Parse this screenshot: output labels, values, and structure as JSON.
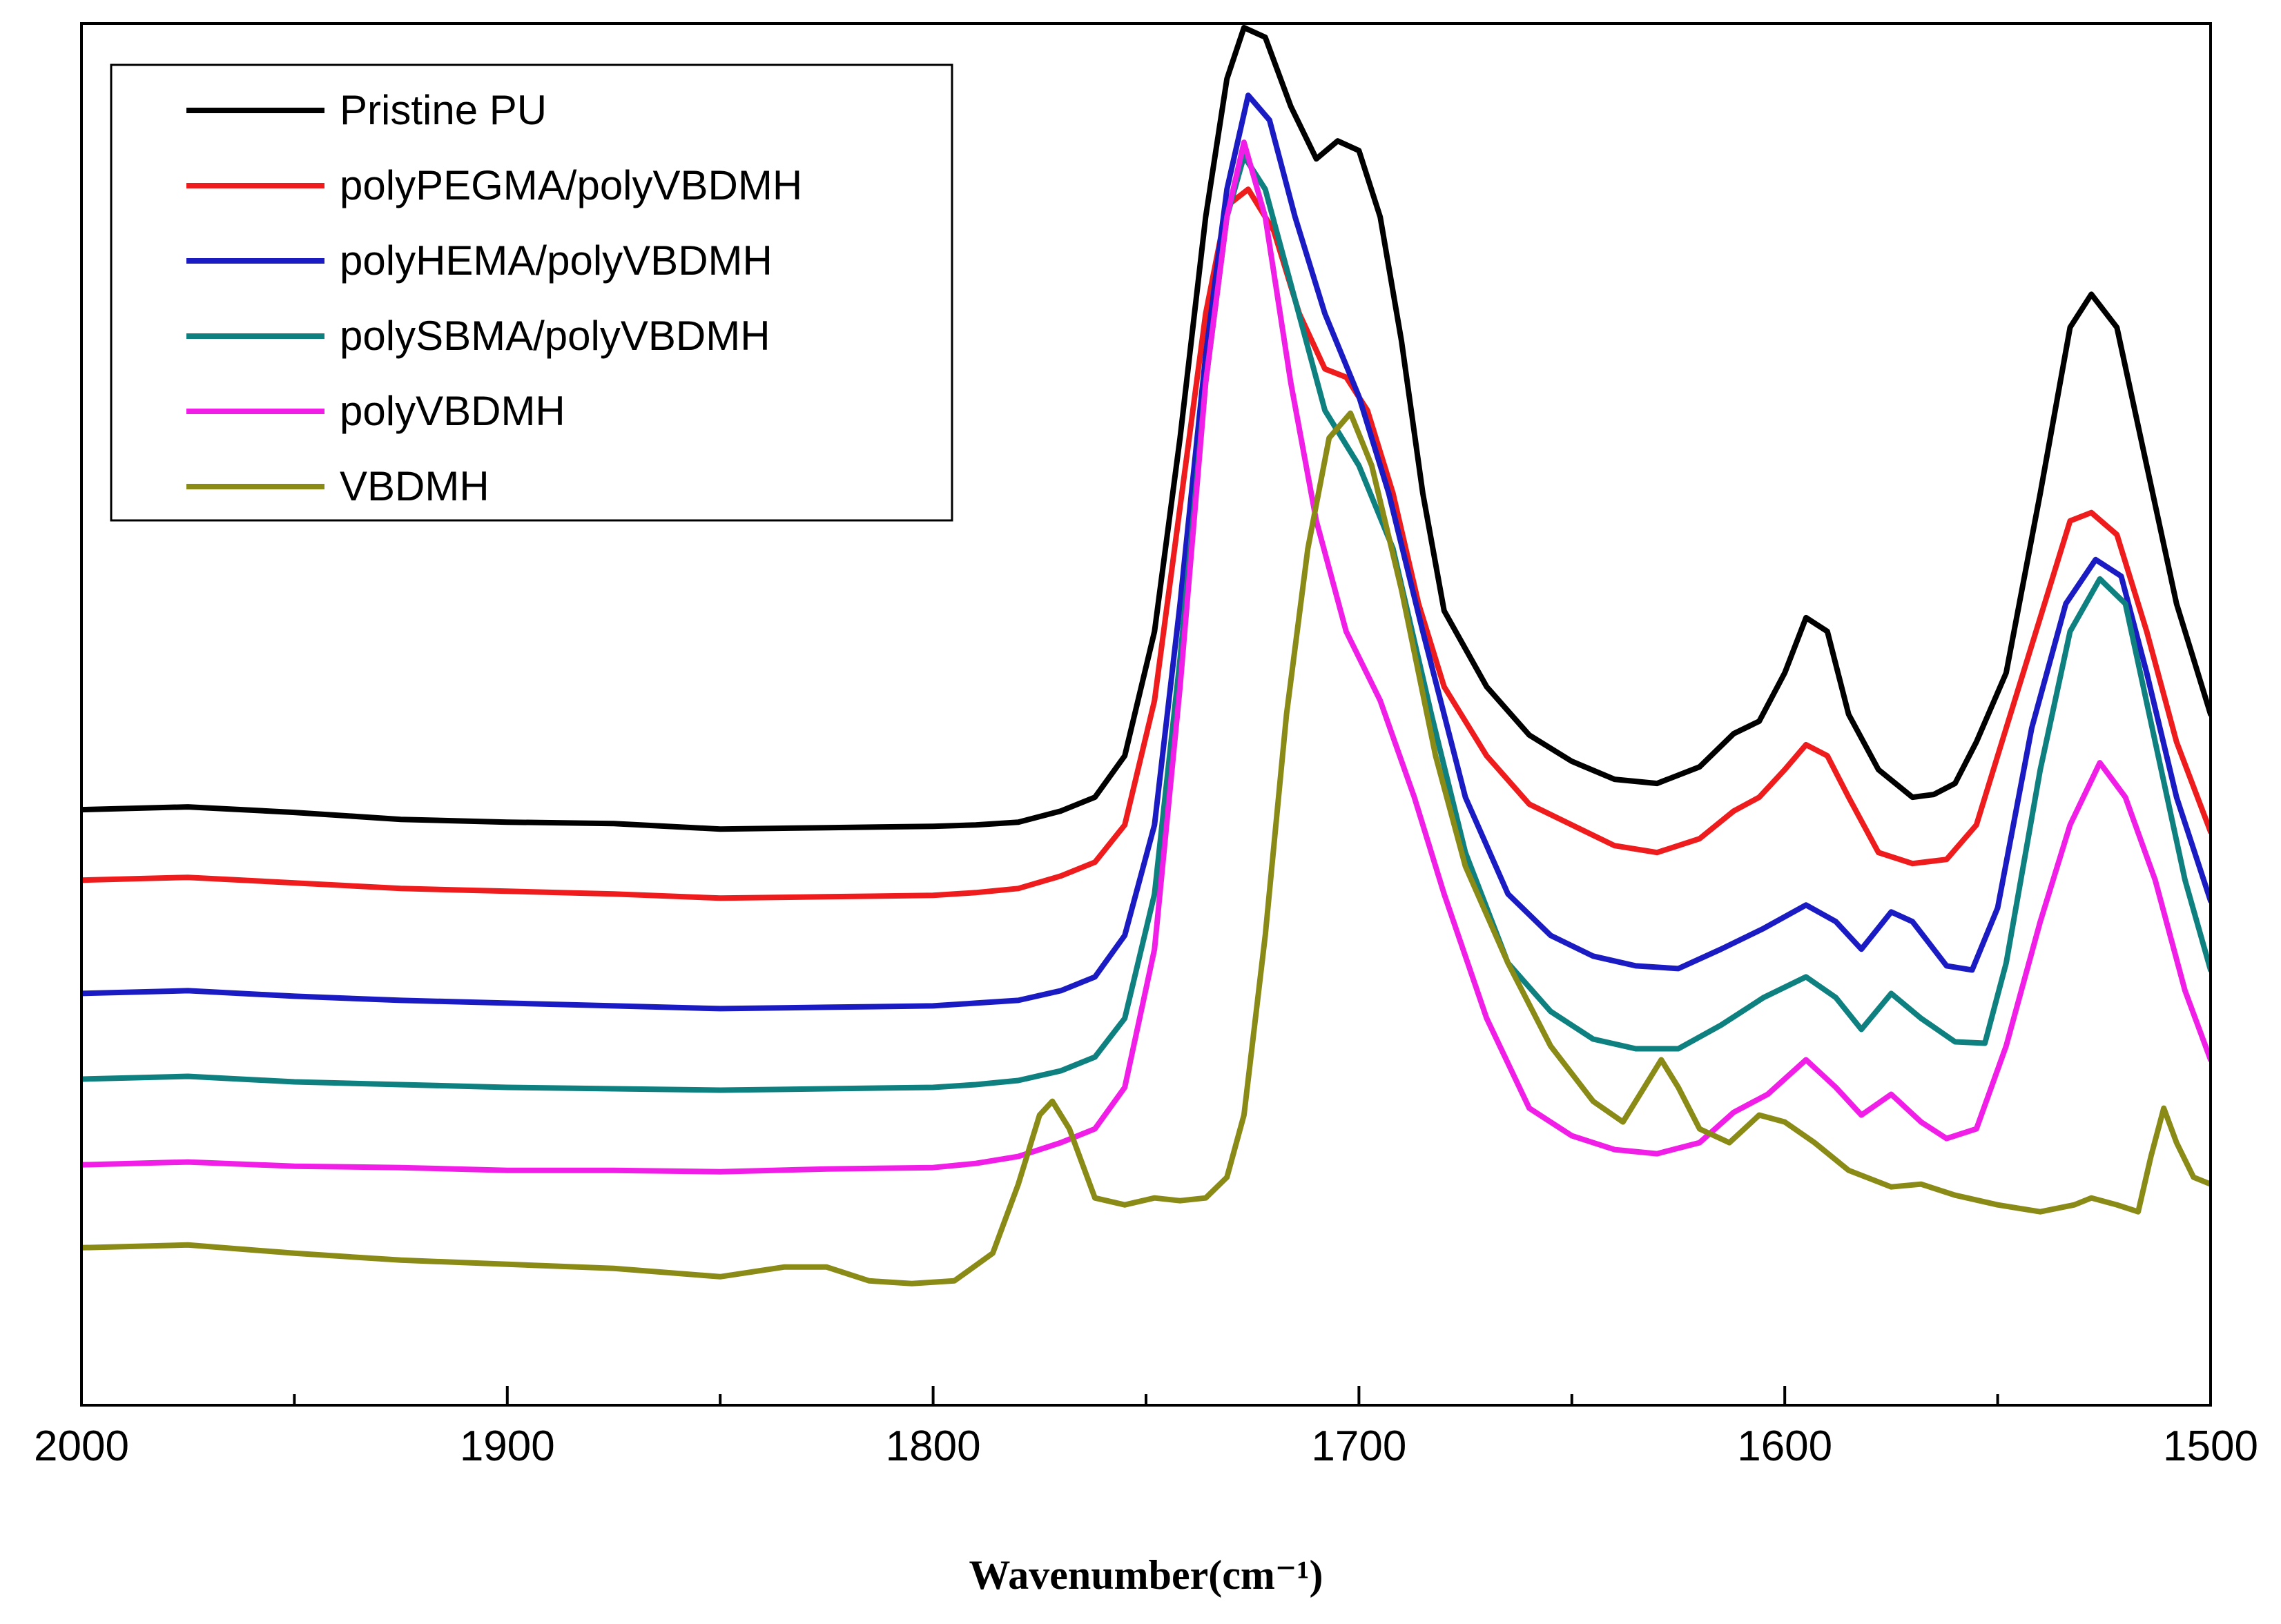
{
  "chart_data": {
    "type": "line",
    "title": "",
    "xlabel": "Wavenumber(cm⁻¹)",
    "ylabel": "",
    "xlim": [
      2000,
      1500
    ],
    "x_reversed": true,
    "ylim": [
      0,
      1
    ],
    "yaxis_visible": false,
    "grid": false,
    "legend_position": "top-left",
    "xticks": [
      2000,
      1900,
      1800,
      1700,
      1600,
      1500
    ],
    "xtick_labels": [
      "2000",
      "1900",
      "1800",
      "1700",
      "1600",
      "1500"
    ],
    "x_minor_ticks": [
      1950,
      1850,
      1750,
      1650,
      1550
    ],
    "series": [
      {
        "name": "Pristine PU",
        "color": "#000000",
        "points": [
          [
            2000,
            0.431
          ],
          [
            1975,
            0.433
          ],
          [
            1950,
            0.429
          ],
          [
            1925,
            0.424
          ],
          [
            1900,
            0.422
          ],
          [
            1875,
            0.421
          ],
          [
            1850,
            0.417
          ],
          [
            1825,
            0.418
          ],
          [
            1800,
            0.419
          ],
          [
            1790,
            0.42
          ],
          [
            1780,
            0.422
          ],
          [
            1770,
            0.43
          ],
          [
            1762,
            0.44
          ],
          [
            1755,
            0.47
          ],
          [
            1748,
            0.56
          ],
          [
            1742,
            0.7
          ],
          [
            1736,
            0.86
          ],
          [
            1731,
            0.96
          ],
          [
            1727,
            0.997
          ],
          [
            1722,
            0.99
          ],
          [
            1716,
            0.94
          ],
          [
            1710,
            0.902
          ],
          [
            1705,
            0.915
          ],
          [
            1700,
            0.908
          ],
          [
            1695,
            0.86
          ],
          [
            1690,
            0.77
          ],
          [
            1685,
            0.66
          ],
          [
            1680,
            0.575
          ],
          [
            1670,
            0.52
          ],
          [
            1660,
            0.485
          ],
          [
            1650,
            0.466
          ],
          [
            1640,
            0.453
          ],
          [
            1630,
            0.45
          ],
          [
            1620,
            0.462
          ],
          [
            1612,
            0.486
          ],
          [
            1606,
            0.495
          ],
          [
            1600,
            0.53
          ],
          [
            1595,
            0.57
          ],
          [
            1590,
            0.56
          ],
          [
            1585,
            0.5
          ],
          [
            1578,
            0.46
          ],
          [
            1570,
            0.44
          ],
          [
            1565,
            0.442
          ],
          [
            1560,
            0.45
          ],
          [
            1555,
            0.48
          ],
          [
            1548,
            0.53
          ],
          [
            1540,
            0.66
          ],
          [
            1533,
            0.78
          ],
          [
            1528,
            0.804
          ],
          [
            1522,
            0.78
          ],
          [
            1515,
            0.68
          ],
          [
            1508,
            0.58
          ],
          [
            1500,
            0.5
          ]
        ]
      },
      {
        "name": "polyPEGMA/polyVBDMH",
        "color": "#ee1c1c",
        "points": [
          [
            2000,
            0.38
          ],
          [
            1975,
            0.382
          ],
          [
            1950,
            0.378
          ],
          [
            1925,
            0.374
          ],
          [
            1900,
            0.372
          ],
          [
            1875,
            0.37
          ],
          [
            1850,
            0.367
          ],
          [
            1825,
            0.368
          ],
          [
            1800,
            0.369
          ],
          [
            1790,
            0.371
          ],
          [
            1780,
            0.374
          ],
          [
            1770,
            0.383
          ],
          [
            1762,
            0.393
          ],
          [
            1755,
            0.42
          ],
          [
            1748,
            0.51
          ],
          [
            1742,
            0.65
          ],
          [
            1736,
            0.79
          ],
          [
            1731,
            0.868
          ],
          [
            1726,
            0.88
          ],
          [
            1720,
            0.85
          ],
          [
            1714,
            0.79
          ],
          [
            1708,
            0.75
          ],
          [
            1703,
            0.744
          ],
          [
            1698,
            0.72
          ],
          [
            1692,
            0.66
          ],
          [
            1686,
            0.58
          ],
          [
            1680,
            0.52
          ],
          [
            1670,
            0.47
          ],
          [
            1660,
            0.435
          ],
          [
            1650,
            0.42
          ],
          [
            1640,
            0.405
          ],
          [
            1630,
            0.4
          ],
          [
            1620,
            0.41
          ],
          [
            1612,
            0.43
          ],
          [
            1606,
            0.44
          ],
          [
            1600,
            0.46
          ],
          [
            1595,
            0.478
          ],
          [
            1590,
            0.47
          ],
          [
            1585,
            0.44
          ],
          [
            1578,
            0.4
          ],
          [
            1570,
            0.392
          ],
          [
            1562,
            0.395
          ],
          [
            1555,
            0.42
          ],
          [
            1548,
            0.49
          ],
          [
            1540,
            0.57
          ],
          [
            1533,
            0.64
          ],
          [
            1528,
            0.646
          ],
          [
            1522,
            0.63
          ],
          [
            1515,
            0.56
          ],
          [
            1508,
            0.48
          ],
          [
            1500,
            0.415
          ]
        ]
      },
      {
        "name": "polyHEMA/polyVBDMH",
        "color": "#1b1bc4",
        "points": [
          [
            2000,
            0.298
          ],
          [
            1975,
            0.3
          ],
          [
            1950,
            0.296
          ],
          [
            1925,
            0.293
          ],
          [
            1900,
            0.291
          ],
          [
            1875,
            0.289
          ],
          [
            1850,
            0.287
          ],
          [
            1825,
            0.288
          ],
          [
            1800,
            0.289
          ],
          [
            1790,
            0.291
          ],
          [
            1780,
            0.293
          ],
          [
            1770,
            0.3
          ],
          [
            1762,
            0.31
          ],
          [
            1755,
            0.34
          ],
          [
            1748,
            0.42
          ],
          [
            1742,
            0.58
          ],
          [
            1736,
            0.76
          ],
          [
            1731,
            0.88
          ],
          [
            1726,
            0.948
          ],
          [
            1721,
            0.93
          ],
          [
            1715,
            0.86
          ],
          [
            1708,
            0.79
          ],
          [
            1700,
            0.73
          ],
          [
            1693,
            0.66
          ],
          [
            1685,
            0.56
          ],
          [
            1675,
            0.44
          ],
          [
            1665,
            0.37
          ],
          [
            1655,
            0.34
          ],
          [
            1645,
            0.325
          ],
          [
            1635,
            0.318
          ],
          [
            1625,
            0.316
          ],
          [
            1615,
            0.33
          ],
          [
            1605,
            0.345
          ],
          [
            1595,
            0.362
          ],
          [
            1588,
            0.35
          ],
          [
            1582,
            0.33
          ],
          [
            1575,
            0.357
          ],
          [
            1570,
            0.35
          ],
          [
            1562,
            0.318
          ],
          [
            1556,
            0.315
          ],
          [
            1550,
            0.36
          ],
          [
            1542,
            0.49
          ],
          [
            1534,
            0.58
          ],
          [
            1527,
            0.612
          ],
          [
            1521,
            0.6
          ],
          [
            1515,
            0.53
          ],
          [
            1508,
            0.44
          ],
          [
            1500,
            0.365
          ]
        ]
      },
      {
        "name": "polySBMA/polyVBDMH",
        "color": "#0e8080",
        "points": [
          [
            2000,
            0.236
          ],
          [
            1975,
            0.238
          ],
          [
            1950,
            0.234
          ],
          [
            1925,
            0.232
          ],
          [
            1900,
            0.23
          ],
          [
            1875,
            0.229
          ],
          [
            1850,
            0.228
          ],
          [
            1825,
            0.229
          ],
          [
            1800,
            0.23
          ],
          [
            1790,
            0.232
          ],
          [
            1780,
            0.235
          ],
          [
            1770,
            0.242
          ],
          [
            1762,
            0.252
          ],
          [
            1755,
            0.28
          ],
          [
            1748,
            0.37
          ],
          [
            1742,
            0.54
          ],
          [
            1736,
            0.74
          ],
          [
            1731,
            0.86
          ],
          [
            1727,
            0.904
          ],
          [
            1722,
            0.88
          ],
          [
            1715,
            0.8
          ],
          [
            1708,
            0.72
          ],
          [
            1700,
            0.68
          ],
          [
            1692,
            0.62
          ],
          [
            1683,
            0.5
          ],
          [
            1675,
            0.4
          ],
          [
            1665,
            0.32
          ],
          [
            1655,
            0.285
          ],
          [
            1645,
            0.265
          ],
          [
            1635,
            0.258
          ],
          [
            1625,
            0.258
          ],
          [
            1615,
            0.275
          ],
          [
            1605,
            0.295
          ],
          [
            1595,
            0.31
          ],
          [
            1588,
            0.295
          ],
          [
            1582,
            0.272
          ],
          [
            1575,
            0.298
          ],
          [
            1568,
            0.28
          ],
          [
            1560,
            0.263
          ],
          [
            1553,
            0.262
          ],
          [
            1548,
            0.32
          ],
          [
            1540,
            0.46
          ],
          [
            1533,
            0.56
          ],
          [
            1526,
            0.598
          ],
          [
            1520,
            0.58
          ],
          [
            1513,
            0.48
          ],
          [
            1506,
            0.38
          ],
          [
            1500,
            0.315
          ]
        ]
      },
      {
        "name": "polyVBDMH",
        "color": "#f01ee6",
        "points": [
          [
            2000,
            0.174
          ],
          [
            1975,
            0.176
          ],
          [
            1950,
            0.173
          ],
          [
            1925,
            0.172
          ],
          [
            1900,
            0.17
          ],
          [
            1875,
            0.17
          ],
          [
            1850,
            0.169
          ],
          [
            1825,
            0.171
          ],
          [
            1800,
            0.172
          ],
          [
            1790,
            0.175
          ],
          [
            1780,
            0.18
          ],
          [
            1770,
            0.19
          ],
          [
            1762,
            0.2
          ],
          [
            1755,
            0.23
          ],
          [
            1748,
            0.33
          ],
          [
            1742,
            0.52
          ],
          [
            1736,
            0.74
          ],
          [
            1731,
            0.86
          ],
          [
            1727,
            0.914
          ],
          [
            1722,
            0.86
          ],
          [
            1716,
            0.74
          ],
          [
            1710,
            0.64
          ],
          [
            1703,
            0.56
          ],
          [
            1695,
            0.51
          ],
          [
            1687,
            0.44
          ],
          [
            1680,
            0.37
          ],
          [
            1670,
            0.28
          ],
          [
            1660,
            0.215
          ],
          [
            1650,
            0.195
          ],
          [
            1640,
            0.185
          ],
          [
            1630,
            0.182
          ],
          [
            1620,
            0.19
          ],
          [
            1612,
            0.212
          ],
          [
            1604,
            0.225
          ],
          [
            1595,
            0.25
          ],
          [
            1588,
            0.23
          ],
          [
            1582,
            0.21
          ],
          [
            1575,
            0.225
          ],
          [
            1568,
            0.205
          ],
          [
            1562,
            0.193
          ],
          [
            1555,
            0.2
          ],
          [
            1548,
            0.26
          ],
          [
            1540,
            0.35
          ],
          [
            1533,
            0.42
          ],
          [
            1526,
            0.465
          ],
          [
            1520,
            0.44
          ],
          [
            1513,
            0.38
          ],
          [
            1506,
            0.3
          ],
          [
            1500,
            0.25
          ]
        ]
      },
      {
        "name": "VBDMH",
        "color": "#8a8a16",
        "points": [
          [
            2000,
            0.114
          ],
          [
            1975,
            0.116
          ],
          [
            1950,
            0.11
          ],
          [
            1925,
            0.105
          ],
          [
            1900,
            0.102
          ],
          [
            1875,
            0.099
          ],
          [
            1850,
            0.093
          ],
          [
            1835,
            0.1
          ],
          [
            1825,
            0.1
          ],
          [
            1815,
            0.09
          ],
          [
            1805,
            0.088
          ],
          [
            1795,
            0.09
          ],
          [
            1786,
            0.11
          ],
          [
            1780,
            0.16
          ],
          [
            1775,
            0.21
          ],
          [
            1772,
            0.22
          ],
          [
            1768,
            0.2
          ],
          [
            1762,
            0.15
          ],
          [
            1755,
            0.145
          ],
          [
            1748,
            0.15
          ],
          [
            1742,
            0.148
          ],
          [
            1736,
            0.15
          ],
          [
            1731,
            0.165
          ],
          [
            1727,
            0.21
          ],
          [
            1722,
            0.34
          ],
          [
            1717,
            0.5
          ],
          [
            1712,
            0.62
          ],
          [
            1707,
            0.7
          ],
          [
            1702,
            0.718
          ],
          [
            1697,
            0.68
          ],
          [
            1690,
            0.59
          ],
          [
            1682,
            0.47
          ],
          [
            1675,
            0.39
          ],
          [
            1665,
            0.32
          ],
          [
            1655,
            0.26
          ],
          [
            1645,
            0.22
          ],
          [
            1638,
            0.205
          ],
          [
            1633,
            0.23
          ],
          [
            1629,
            0.25
          ],
          [
            1625,
            0.23
          ],
          [
            1620,
            0.2
          ],
          [
            1613,
            0.19
          ],
          [
            1606,
            0.21
          ],
          [
            1600,
            0.205
          ],
          [
            1593,
            0.19
          ],
          [
            1585,
            0.17
          ],
          [
            1575,
            0.158
          ],
          [
            1568,
            0.16
          ],
          [
            1560,
            0.152
          ],
          [
            1550,
            0.145
          ],
          [
            1540,
            0.14
          ],
          [
            1532,
            0.145
          ],
          [
            1528,
            0.15
          ],
          [
            1522,
            0.145
          ],
          [
            1517,
            0.14
          ],
          [
            1514,
            0.18
          ],
          [
            1511,
            0.215
          ],
          [
            1508,
            0.19
          ],
          [
            1504,
            0.165
          ],
          [
            1500,
            0.16
          ]
        ]
      }
    ]
  }
}
